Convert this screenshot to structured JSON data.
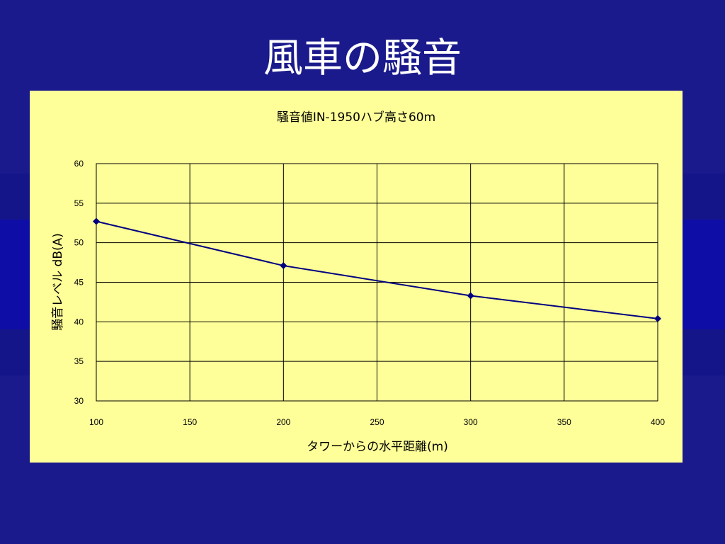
{
  "slide": {
    "title": "風車の騒音"
  },
  "chart_data": {
    "type": "line",
    "title": "騒音値IN-1950ハブ高さ60m",
    "xlabel": "タワーからの水平距離(m)",
    "ylabel": "騒音レベル dB(A)",
    "xlim": [
      100,
      400
    ],
    "ylim": [
      30,
      60
    ],
    "xticks": [
      100,
      150,
      200,
      250,
      300,
      350,
      400
    ],
    "yticks": [
      30,
      35,
      40,
      45,
      50,
      55,
      60
    ],
    "grid": true,
    "series": [
      {
        "x": [
          100,
          200,
          300,
          400
        ],
        "y": [
          52.7,
          47.1,
          43.3,
          40.4
        ],
        "color": "#000080"
      }
    ]
  }
}
